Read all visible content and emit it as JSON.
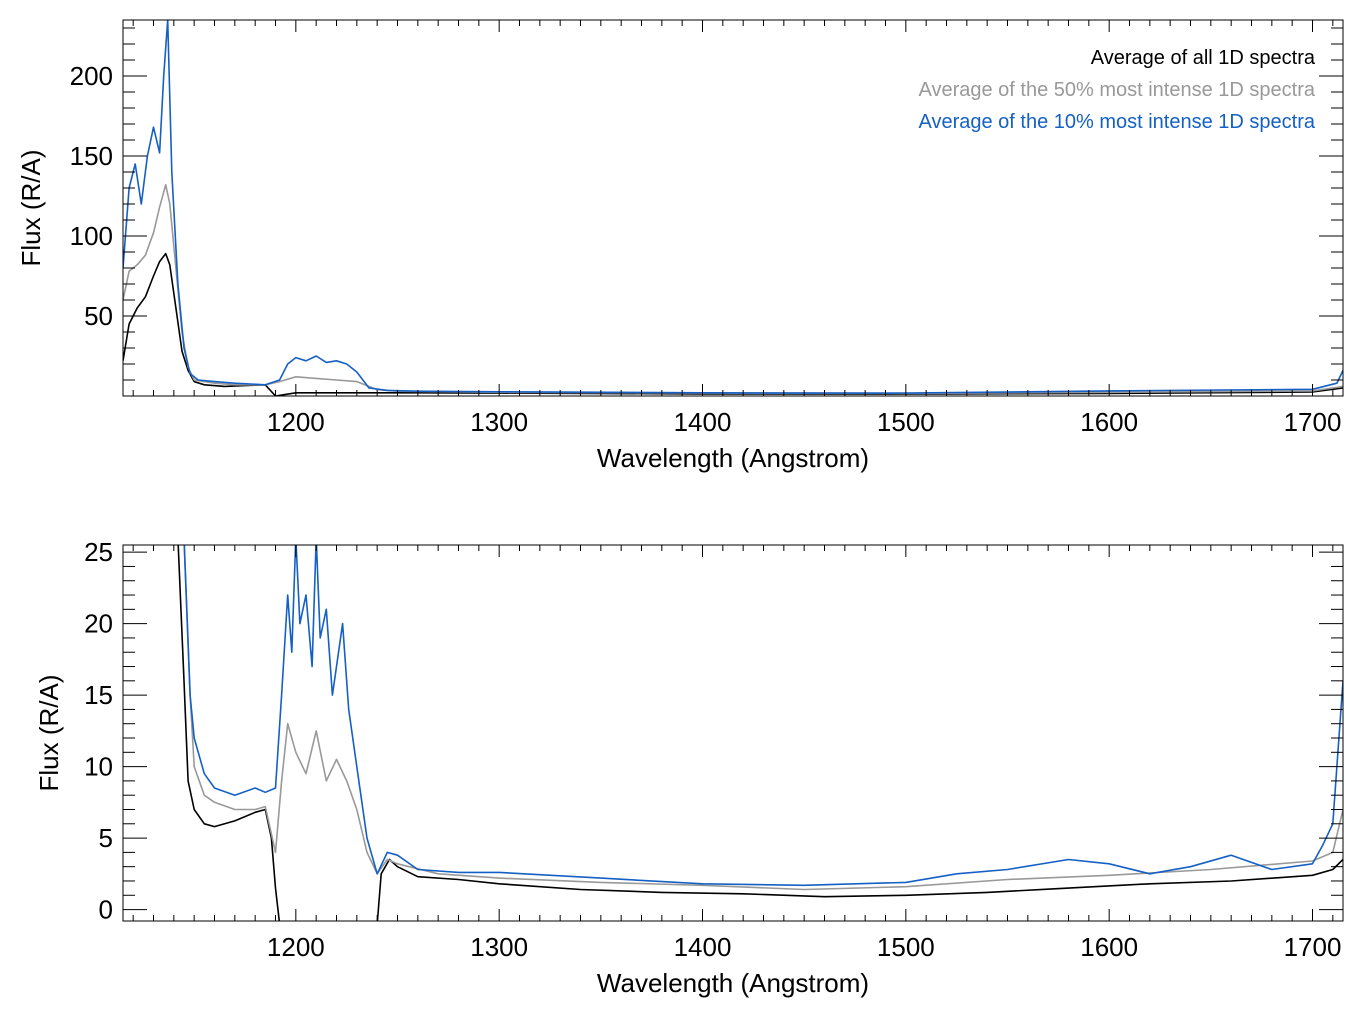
{
  "legend": {
    "entries": [
      {
        "label": "Average of all 1D spectra",
        "color": "#000000"
      },
      {
        "label": "Average of the 50% most intense 1D spectra",
        "color": "#999999"
      },
      {
        "label": "Average of the 10% most intense 1D spectra",
        "color": "#1560c4"
      }
    ],
    "placement": "top-right"
  },
  "chart_data": [
    {
      "type": "line",
      "xlabel": "Wavelength (Angstrom)",
      "ylabel": "Flux (R/A)",
      "xlim": [
        1115,
        1715
      ],
      "ylim": [
        0,
        235
      ],
      "xticks": [
        1200,
        1300,
        1400,
        1500,
        1600,
        1700
      ],
      "yticks": [
        50,
        100,
        150,
        200
      ],
      "grid": false,
      "legend": "top-right",
      "series": [
        {
          "name": "Average of all 1D spectra",
          "color": "#000000",
          "x": [
            1115,
            1118,
            1122,
            1126,
            1130,
            1133,
            1136,
            1138,
            1141,
            1144,
            1147,
            1150,
            1155,
            1165,
            1175,
            1185,
            1190,
            1200,
            1220,
            1240,
            1260,
            1300,
            1400,
            1500,
            1600,
            1700,
            1715
          ],
          "y": [
            22,
            45,
            55,
            62,
            75,
            84,
            89,
            82,
            55,
            28,
            16,
            9,
            7,
            6,
            6.5,
            7,
            0,
            2,
            2,
            2,
            2,
            1.8,
            1.3,
            1.2,
            1.6,
            2.5,
            5
          ]
        },
        {
          "name": "Average of the 50% most intense 1D spectra",
          "color": "#999999",
          "x": [
            1115,
            1118,
            1122,
            1126,
            1130,
            1133,
            1136,
            1138,
            1141,
            1144,
            1147,
            1150,
            1160,
            1170,
            1185,
            1192,
            1200,
            1210,
            1220,
            1230,
            1240,
            1250,
            1300,
            1400,
            1500,
            1600,
            1700,
            1715
          ],
          "y": [
            60,
            78,
            82,
            88,
            102,
            118,
            132,
            120,
            80,
            40,
            18,
            10,
            8,
            7,
            7,
            9,
            12,
            11,
            10,
            9,
            4,
            3,
            2.3,
            1.8,
            1.6,
            2.3,
            3.2,
            6
          ]
        },
        {
          "name": "Average of the 10% most intense 1D spectra",
          "color": "#1560c4",
          "x": [
            1115,
            1118,
            1121,
            1124,
            1127,
            1130,
            1133,
            1135,
            1137,
            1139,
            1142,
            1145,
            1148,
            1152,
            1160,
            1170,
            1185,
            1192,
            1196,
            1200,
            1205,
            1210,
            1215,
            1220,
            1225,
            1230,
            1236,
            1245,
            1260,
            1300,
            1400,
            1500,
            1600,
            1700,
            1712,
            1715
          ],
          "y": [
            80,
            130,
            145,
            120,
            150,
            168,
            152,
            200,
            235,
            140,
            70,
            30,
            14,
            10,
            9,
            8,
            7,
            10,
            20,
            24,
            22,
            25,
            21,
            22,
            20,
            15,
            5,
            3.5,
            3,
            2.6,
            2,
            1.8,
            3.2,
            4.2,
            8,
            16
          ]
        }
      ]
    },
    {
      "type": "line",
      "xlabel": "Wavelength (Angstrom)",
      "ylabel": "Flux (R/A)",
      "xlim": [
        1115,
        1715
      ],
      "ylim": [
        -0.8,
        25.5
      ],
      "xticks": [
        1200,
        1300,
        1400,
        1500,
        1600,
        1700
      ],
      "yticks": [
        0,
        5,
        10,
        15,
        20,
        25
      ],
      "grid": false,
      "series": [
        {
          "name": "Average of all 1D spectra",
          "color": "#000000",
          "x": [
            1142,
            1145,
            1147,
            1150,
            1155,
            1160,
            1170,
            1180,
            1185,
            1188,
            1190,
            1192,
            1240,
            1242,
            1246,
            1250,
            1260,
            1280,
            1300,
            1340,
            1380,
            1420,
            1460,
            1500,
            1540,
            1580,
            1620,
            1660,
            1700,
            1710,
            1715
          ],
          "y": [
            26,
            16,
            9,
            7,
            6,
            5.8,
            6.2,
            6.8,
            7,
            5,
            1.5,
            -1,
            -1,
            2.5,
            3.5,
            3,
            2.3,
            2.1,
            1.8,
            1.4,
            1.2,
            1.1,
            0.9,
            1,
            1.2,
            1.5,
            1.8,
            2,
            2.4,
            2.8,
            3.5
          ]
        },
        {
          "name": "Average of the 50% most intense 1D spectra",
          "color": "#999999",
          "x": [
            1145,
            1148,
            1150,
            1155,
            1160,
            1170,
            1180,
            1185,
            1190,
            1193,
            1196,
            1200,
            1205,
            1210,
            1215,
            1220,
            1225,
            1230,
            1235,
            1240,
            1245,
            1250,
            1270,
            1300,
            1350,
            1400,
            1450,
            1500,
            1550,
            1600,
            1650,
            1700,
            1710,
            1715
          ],
          "y": [
            26,
            15,
            10,
            8,
            7.5,
            7,
            7,
            7.2,
            4,
            9,
            13,
            11,
            9.5,
            12.5,
            9,
            10.5,
            9,
            7,
            4,
            2.5,
            3.5,
            3.2,
            2.5,
            2.2,
            1.9,
            1.7,
            1.4,
            1.6,
            2.1,
            2.4,
            2.8,
            3.4,
            4,
            7
          ]
        },
        {
          "name": "Average of the 10% most intense 1D spectra",
          "color": "#1560c4",
          "x": [
            1145,
            1148,
            1150,
            1155,
            1160,
            1170,
            1180,
            1185,
            1190,
            1193,
            1196,
            1198,
            1200,
            1202,
            1205,
            1208,
            1210,
            1212,
            1215,
            1218,
            1220,
            1223,
            1226,
            1230,
            1235,
            1240,
            1245,
            1250,
            1260,
            1280,
            1300,
            1350,
            1400,
            1450,
            1500,
            1525,
            1550,
            1580,
            1600,
            1620,
            1640,
            1660,
            1680,
            1700,
            1705,
            1710,
            1715
          ],
          "y": [
            26,
            15,
            12,
            9.5,
            8.5,
            8,
            8.5,
            8.2,
            8.5,
            15,
            22,
            18,
            26,
            20,
            22,
            17,
            26,
            19,
            21,
            15,
            17,
            20,
            14,
            10,
            5,
            2.5,
            4,
            3.8,
            2.8,
            2.6,
            2.6,
            2.2,
            1.8,
            1.7,
            1.9,
            2.5,
            2.8,
            3.5,
            3.2,
            2.5,
            3,
            3.8,
            2.8,
            3.2,
            4.5,
            6,
            16
          ]
        }
      ]
    }
  ]
}
